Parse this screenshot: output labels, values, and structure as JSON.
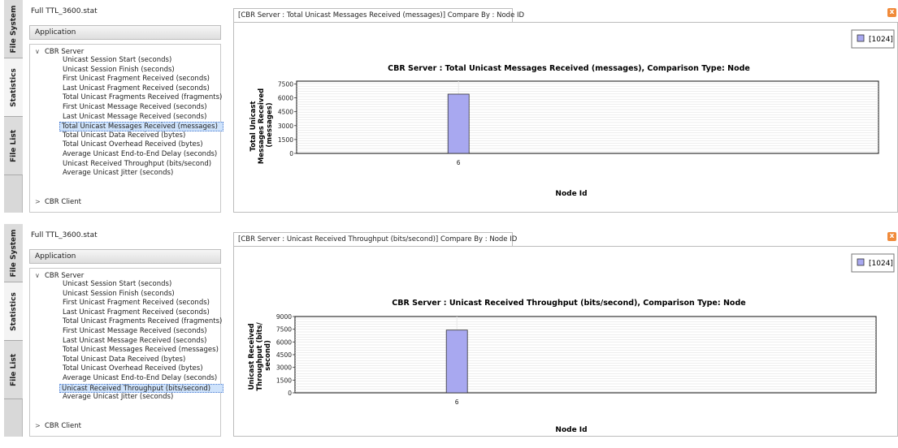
{
  "tabs": [
    "File System",
    "Statistics",
    "File List"
  ],
  "panels": [
    {
      "file_name": "Full TTL_3600.stat",
      "app_label": "Application",
      "tree_root": "CBR Server",
      "tree_items": [
        "Unicast Session Start (seconds)",
        "Unicast Session Finish (seconds)",
        "First Unicast Fragment Received (seconds)",
        "Last Unicast Fragment Received (seconds)",
        "Total Unicast Fragments Received (fragments)",
        "First Unicast Message Received (seconds)",
        "Last Unicast Message Received (seconds)",
        "Total Unicast Messages Received (messages)",
        "Total Unicast Data Received (bytes)",
        "Total Unicast Overhead Received (bytes)",
        "Average Unicast End-to-End Delay (seconds)",
        "Unicast Received Throughput (bits/second)",
        "Average Unicast Jitter (seconds)"
      ],
      "selected_index": 7,
      "tree_collapsed": "CBR Client",
      "chart_tab_title": "[CBR Server : Total Unicast Messages Received (messages)] Compare By : Node ID",
      "close_glyph": "x",
      "legend_label": "[1024]",
      "chart_title": "CBR Server :  Total Unicast Messages Received (messages), Comparison Type: Node",
      "ylabel_lines": [
        "Total Unicast",
        "Messages Received",
        "(messages)"
      ],
      "xlabel": "Node Id",
      "series_color": "#a8a8f0"
    },
    {
      "file_name": "Full TTL_3600.stat",
      "app_label": "Application",
      "tree_root": "CBR Server",
      "tree_items": [
        "Unicast Session Start (seconds)",
        "Unicast Session Finish (seconds)",
        "First Unicast Fragment Received (seconds)",
        "Last Unicast Fragment Received (seconds)",
        "Total Unicast Fragments Received (fragments)",
        "First Unicast Message Received (seconds)",
        "Last Unicast Message Received (seconds)",
        "Total Unicast Messages Received (messages)",
        "Total Unicast Data Received (bytes)",
        "Total Unicast Overhead Received (bytes)",
        "Average Unicast End-to-End Delay (seconds)",
        "Unicast Received Throughput (bits/second)",
        "Average Unicast Jitter (seconds)"
      ],
      "selected_index": 11,
      "tree_collapsed": "CBR Client",
      "chart_tab_title": "[CBR Server : Unicast Received Throughput (bits/second)] Compare By : Node ID",
      "close_glyph": "x",
      "legend_label": "[1024]",
      "chart_title": "CBR Server :  Unicast Received Throughput (bits/second), Comparison Type: Node",
      "ylabel_lines": [
        "Unicast Received",
        "Throughput (bits/",
        "second)"
      ],
      "xlabel": "Node Id",
      "series_color": "#a8a8f0"
    }
  ],
  "chart_data": [
    {
      "type": "bar",
      "title": "CBR Server :  Total Unicast Messages Received (messages), Comparison Type: Node",
      "xlabel": "Node Id",
      "ylabel": "Total Unicast Messages Received (messages)",
      "categories": [
        "6"
      ],
      "series": [
        {
          "name": "[1024]",
          "values": [
            6400
          ]
        }
      ],
      "yticks": [
        0,
        1500,
        3000,
        4500,
        6000,
        7500
      ],
      "ylim": [
        0,
        7800
      ],
      "grid": true,
      "legend": "top-right"
    },
    {
      "type": "bar",
      "title": "CBR Server :  Unicast Received Throughput (bits/second), Comparison Type: Node",
      "xlabel": "Node Id",
      "ylabel": "Unicast Received Throughput (bits/second)",
      "categories": [
        "6"
      ],
      "series": [
        {
          "name": "[1024]",
          "values": [
            7400
          ]
        }
      ],
      "yticks": [
        0,
        1500,
        3000,
        4500,
        6000,
        7500,
        9000
      ],
      "ylim": [
        0,
        9000
      ],
      "grid": true,
      "legend": "top-right"
    }
  ]
}
